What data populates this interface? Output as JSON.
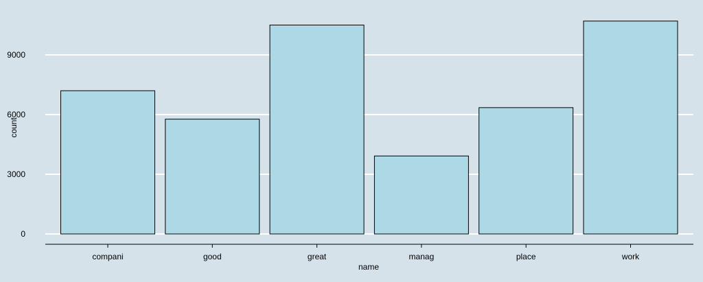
{
  "chart_data": {
    "type": "bar",
    "categories": [
      "compani",
      "good",
      "great",
      "manag",
      "place",
      "work"
    ],
    "values": [
      7200,
      5770,
      10500,
      3920,
      6350,
      10700
    ],
    "xlabel": "name",
    "ylabel": "count",
    "yticks": [
      0,
      3000,
      6000,
      9000
    ],
    "ytick_labels": [
      "0",
      "3000",
      "6000",
      "9000"
    ],
    "ylim": [
      0,
      11000
    ],
    "grid": "horizontal",
    "legend": "none"
  },
  "colors": {
    "background": "#d5e2ea",
    "bar_fill": "#add8e6",
    "bar_stroke": "#000000",
    "grid": "#ffffff",
    "axis": "#000000"
  }
}
